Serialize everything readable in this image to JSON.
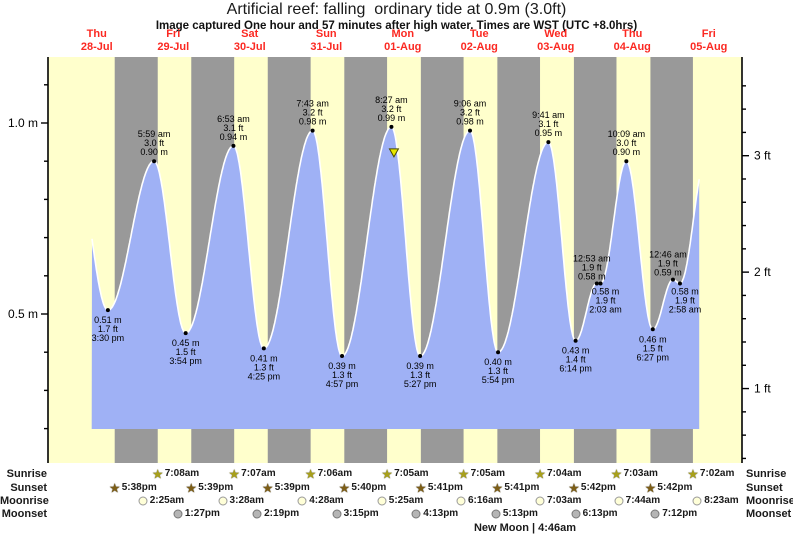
{
  "title": "Artificial reef: falling  ordinary tide at 0.9m (3.0ft)",
  "subtitle": "Image captured One hour and 57 minutes after high water. Times are WST (UTC +8.0hrs)",
  "days": [
    {
      "name": "Thu",
      "date": "28-Jul"
    },
    {
      "name": "Fri",
      "date": "29-Jul"
    },
    {
      "name": "Sat",
      "date": "30-Jul"
    },
    {
      "name": "Sun",
      "date": "31-Jul"
    },
    {
      "name": "Mon",
      "date": "01-Aug"
    },
    {
      "name": "Tue",
      "date": "02-Aug"
    },
    {
      "name": "Wed",
      "date": "03-Aug"
    },
    {
      "name": "Thu",
      "date": "04-Aug"
    },
    {
      "name": "Fri",
      "date": "05-Aug"
    }
  ],
  "axes": {
    "left_labels": [
      {
        "value": 1.0,
        "text": "1.0 m"
      },
      {
        "value": 0.5,
        "text": "0.5 m"
      }
    ],
    "right_labels": [
      {
        "value": 3,
        "text": "3 ft"
      },
      {
        "value": 2,
        "text": "2 ft"
      },
      {
        "value": 1,
        "text": "1 ft"
      }
    ]
  },
  "chart_data": {
    "type": "area",
    "title": "Artificial reef tide height, Thu 28-Jul to Fri 05-Aug",
    "x_axis": "time over 9 days (day/night bands from sunset to sunrise)",
    "y_left_unit": "m",
    "y_right_unit": "ft",
    "y_left_ticks_m": [
      0.5,
      1.0
    ],
    "y_right_ticks_ft": [
      1,
      2,
      3
    ],
    "tide_events": [
      {
        "type": "low",
        "day": 0,
        "time": "3:30 pm",
        "height_m": 0.51,
        "m_label": "0.51 m",
        "ft_label": "1.7 ft"
      },
      {
        "type": "high",
        "day": 1,
        "time": "5:59 am",
        "height_m": 0.9,
        "m_label": "0.90 m",
        "ft_label": "3.0 ft"
      },
      {
        "type": "low",
        "day": 1,
        "time": "3:54 pm",
        "height_m": 0.45,
        "m_label": "0.45 m",
        "ft_label": "1.5 ft"
      },
      {
        "type": "high",
        "day": 2,
        "time": "6:53 am",
        "height_m": 0.94,
        "m_label": "0.94 m",
        "ft_label": "3.1 ft"
      },
      {
        "type": "low",
        "day": 2,
        "time": "4:25 pm",
        "height_m": 0.41,
        "m_label": "0.41 m",
        "ft_label": "1.3 ft"
      },
      {
        "type": "high",
        "day": 3,
        "time": "7:43 am",
        "height_m": 0.98,
        "m_label": "0.98 m",
        "ft_label": "3.2 ft"
      },
      {
        "type": "low",
        "day": 3,
        "time": "4:57 pm",
        "height_m": 0.39,
        "m_label": "0.39 m",
        "ft_label": "1.3 ft"
      },
      {
        "type": "high",
        "day": 4,
        "time": "8:27 am",
        "height_m": 0.99,
        "m_label": "0.99 m",
        "ft_label": "3.2 ft",
        "current_marker": true
      },
      {
        "type": "low",
        "day": 4,
        "time": "5:27 pm",
        "height_m": 0.39,
        "m_label": "0.39 m",
        "ft_label": "1.3 ft"
      },
      {
        "type": "high",
        "day": 5,
        "time": "9:06 am",
        "height_m": 0.98,
        "m_label": "0.98 m",
        "ft_label": "3.2 ft"
      },
      {
        "type": "low",
        "day": 5,
        "time": "5:54 pm",
        "height_m": 0.4,
        "m_label": "0.40 m",
        "ft_label": "1.3 ft"
      },
      {
        "type": "high",
        "day": 6,
        "time": "9:41 am",
        "height_m": 0.95,
        "m_label": "0.95 m",
        "ft_label": "3.1 ft"
      },
      {
        "type": "low",
        "day": 6,
        "time": "6:14 pm",
        "height_m": 0.43,
        "m_label": "0.43 m",
        "ft_label": "1.4 ft"
      },
      {
        "type": "high",
        "day": 7,
        "time": "12:53 am",
        "height_m": 0.58,
        "m_label": "0.58 m",
        "ft_label": "1.9 ft",
        "minor": true
      },
      {
        "type": "low",
        "day": 7,
        "time": "2:03 am",
        "height_m": 0.58,
        "m_label": "0.58 m",
        "ft_label": "1.9 ft",
        "minor": true
      },
      {
        "type": "high",
        "day": 7,
        "time": "10:09 am",
        "height_m": 0.9,
        "m_label": "0.90 m",
        "ft_label": "3.0 ft"
      },
      {
        "type": "low",
        "day": 7,
        "time": "6:27 pm",
        "height_m": 0.46,
        "m_label": "0.46 m",
        "ft_label": "1.5 ft"
      },
      {
        "type": "high",
        "day": 8,
        "time": "12:46 am",
        "height_m": 0.59,
        "m_label": "0.59 m",
        "ft_label": "1.9 ft",
        "minor": true
      },
      {
        "type": "low",
        "day": 8,
        "time": "2:58 am",
        "height_m": 0.58,
        "m_label": "0.58 m",
        "ft_label": "1.9 ft",
        "minor": true
      }
    ]
  },
  "astro": {
    "row_labels": [
      "Sunrise",
      "Sunset",
      "Moonrise",
      "Moonset"
    ],
    "sunrise": {
      "start_day": 1,
      "times": [
        "7:08am",
        "7:07am",
        "7:06am",
        "7:05am",
        "7:05am",
        "7:04am",
        "7:03am",
        "7:02am"
      ]
    },
    "sunset": {
      "start_day": 0,
      "times": [
        "5:38pm",
        "5:39pm",
        "5:39pm",
        "5:40pm",
        "5:41pm",
        "5:41pm",
        "5:42pm",
        "5:42pm"
      ]
    },
    "moonrise": {
      "start_day": 1,
      "times": [
        "2:25am",
        "3:28am",
        "4:28am",
        "5:25am",
        "6:16am",
        "7:03am",
        "7:44am",
        "8:23am"
      ]
    },
    "moonset": {
      "start_day": 1,
      "times": [
        "1:27pm",
        "2:19pm",
        "3:15pm",
        "4:13pm",
        "5:13pm",
        "6:13pm",
        "7:12pm"
      ]
    },
    "new_moon": "New Moon | 4:46am"
  },
  "colors": {
    "day_band": "#ffffcc",
    "night_band": "#999999",
    "tide_fill": "#9fb1f5",
    "curve_edge": "#ffffff",
    "day_label_red": "#fb2922",
    "marker_yellow": "#e8e800",
    "marker_outline": "#494900",
    "sunrise_star": "#a8a01a",
    "sunset_star": "#7d5e17",
    "moonrise_fill": "#ffffd8",
    "moonset_fill": "#b5b5b5"
  }
}
